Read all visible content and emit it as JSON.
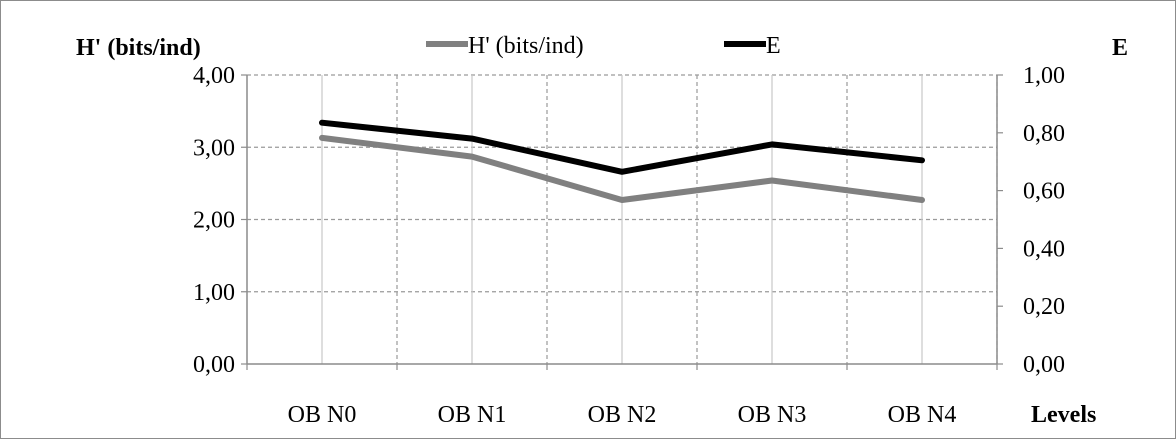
{
  "chart_data": {
    "type": "line",
    "categories": [
      "OB N0",
      "OB N1",
      "OB N2",
      "OB N3",
      "OB N4"
    ],
    "series": [
      {
        "name": "H' (bits/ind)",
        "axis": "left",
        "color": "#808080",
        "values": [
          3.13,
          2.87,
          2.27,
          2.54,
          2.27
        ]
      },
      {
        "name": "E",
        "axis": "right",
        "color": "#000000",
        "values": [
          0.835,
          0.78,
          0.665,
          0.76,
          0.705
        ]
      }
    ],
    "left_axis": {
      "label": "H' (bits/ind)",
      "ylim": [
        0,
        4
      ],
      "ticks": [
        "0,00",
        "1,00",
        "2,00",
        "3,00",
        "4,00"
      ]
    },
    "right_axis": {
      "label": "E",
      "ylim": [
        0,
        1
      ],
      "ticks": [
        "0,00",
        "0,20",
        "0,40",
        "0,60",
        "0,80",
        "1,00"
      ]
    },
    "xlabel": "Levels",
    "grid": "dashed",
    "legend_position": "top-center"
  }
}
